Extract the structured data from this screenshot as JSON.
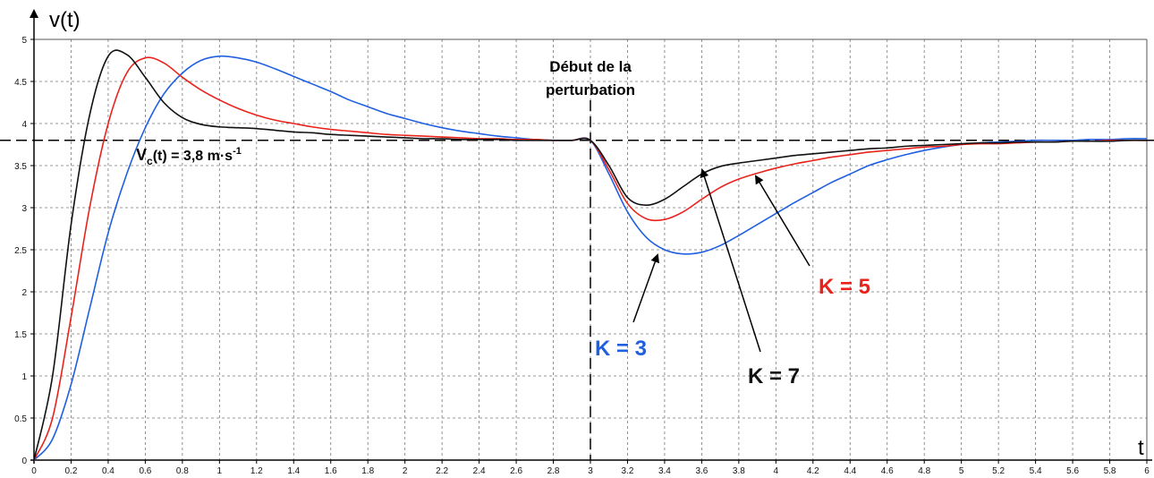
{
  "chart_data": {
    "type": "line",
    "y_axis_label": "v(t)",
    "x_axis_label": "t",
    "xlim": [
      0,
      6
    ],
    "ylim": [
      0,
      5
    ],
    "xticks": [
      0,
      0.2,
      0.4,
      0.6,
      0.8,
      1,
      1.2,
      1.4,
      1.6,
      1.8,
      2,
      2.2,
      2.4,
      2.6,
      2.8,
      3,
      3.2,
      3.4,
      3.6,
      3.8,
      4,
      4.2,
      4.4,
      4.6,
      4.8,
      5,
      5.2,
      5.4,
      5.6,
      5.8,
      6
    ],
    "yticks": [
      0,
      0.5,
      1,
      1.5,
      2,
      2.5,
      3,
      3.5,
      4,
      4.5,
      5
    ],
    "grid": true,
    "reference_line": {
      "value": 3.8,
      "label_main": "V",
      "label_sub": "c",
      "label_rest": "(t) = 3,8 m·s",
      "label_sup": "-1"
    },
    "disturbance": {
      "x": 3,
      "label": [
        "Début de la",
        "perturbation"
      ]
    },
    "x": [
      0,
      0.1,
      0.2,
      0.3,
      0.4,
      0.5,
      0.6,
      0.7,
      0.8,
      0.9,
      1,
      1.1,
      1.2,
      1.3,
      1.4,
      1.5,
      1.6,
      1.7,
      1.8,
      1.9,
      2,
      2.1,
      2.2,
      2.3,
      2.4,
      2.5,
      2.6,
      2.7,
      2.8,
      2.9,
      3,
      3.1,
      3.2,
      3.3,
      3.4,
      3.5,
      3.6,
      3.7,
      3.8,
      3.9,
      4,
      4.1,
      4.2,
      4.3,
      4.4,
      4.5,
      4.6,
      4.7,
      4.8,
      4.9,
      5,
      5.1,
      5.2,
      5.3,
      5.4,
      5.5,
      5.6,
      5.7,
      5.8,
      5.9,
      6
    ],
    "series": [
      {
        "name": "K = 3",
        "color": "#1f5fe0",
        "values": [
          0,
          0.25,
          0.9,
          1.8,
          2.7,
          3.4,
          3.95,
          4.35,
          4.6,
          4.75,
          4.8,
          4.78,
          4.73,
          4.65,
          4.56,
          4.47,
          4.38,
          4.28,
          4.2,
          4.12,
          4.06,
          4.0,
          3.95,
          3.91,
          3.88,
          3.85,
          3.83,
          3.81,
          3.8,
          3.8,
          3.8,
          3.4,
          2.95,
          2.65,
          2.5,
          2.45,
          2.47,
          2.55,
          2.67,
          2.8,
          2.93,
          3.06,
          3.18,
          3.3,
          3.4,
          3.5,
          3.57,
          3.63,
          3.68,
          3.72,
          3.75,
          3.77,
          3.78,
          3.79,
          3.8,
          3.8,
          3.8,
          3.81,
          3.81,
          3.82,
          3.82
        ]
      },
      {
        "name": "K = 5",
        "color": "#e8231c",
        "values": [
          0,
          0.5,
          1.7,
          3.0,
          4.0,
          4.6,
          4.78,
          4.72,
          4.55,
          4.4,
          4.28,
          4.18,
          4.1,
          4.04,
          4.0,
          3.96,
          3.93,
          3.91,
          3.89,
          3.87,
          3.86,
          3.85,
          3.84,
          3.83,
          3.82,
          3.82,
          3.81,
          3.81,
          3.8,
          3.8,
          3.8,
          3.45,
          3.05,
          2.87,
          2.86,
          2.95,
          3.1,
          3.24,
          3.34,
          3.41,
          3.47,
          3.52,
          3.56,
          3.6,
          3.63,
          3.66,
          3.68,
          3.7,
          3.72,
          3.73,
          3.75,
          3.76,
          3.76,
          3.77,
          3.78,
          3.78,
          3.79,
          3.79,
          3.8,
          3.8,
          3.8
        ]
      },
      {
        "name": "K = 7",
        "color": "#111111",
        "values": [
          0,
          1.0,
          2.8,
          4.1,
          4.8,
          4.82,
          4.55,
          4.25,
          4.07,
          3.99,
          3.96,
          3.95,
          3.94,
          3.92,
          3.9,
          3.89,
          3.87,
          3.86,
          3.85,
          3.84,
          3.83,
          3.82,
          3.82,
          3.81,
          3.81,
          3.81,
          3.8,
          3.8,
          3.8,
          3.8,
          3.8,
          3.5,
          3.12,
          3.03,
          3.1,
          3.25,
          3.4,
          3.49,
          3.53,
          3.56,
          3.59,
          3.62,
          3.64,
          3.66,
          3.68,
          3.7,
          3.71,
          3.73,
          3.74,
          3.75,
          3.76,
          3.77,
          3.77,
          3.78,
          3.78,
          3.78,
          3.79,
          3.79,
          3.79,
          3.8,
          3.8
        ]
      }
    ]
  }
}
